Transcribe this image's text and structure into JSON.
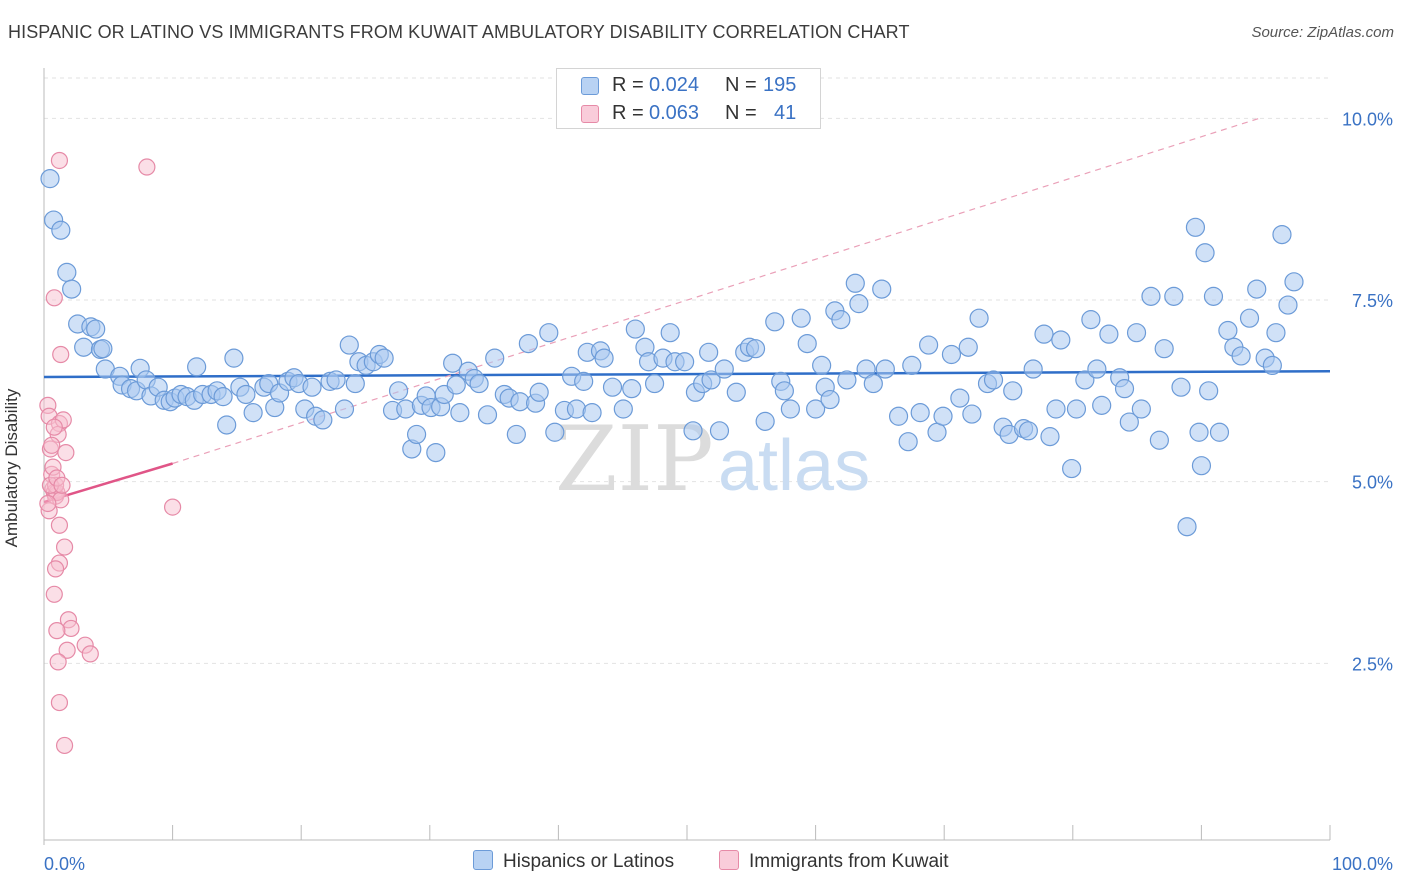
{
  "title": "HISPANIC OR LATINO VS IMMIGRANTS FROM KUWAIT AMBULATORY DISABILITY CORRELATION CHART",
  "source": "Source: ZipAtlas.com",
  "watermark": {
    "zip": "ZIP",
    "atlas": "atlas"
  },
  "legend": {
    "row1": {
      "r_label": "R =",
      "r_value": "0.024",
      "n_label": "N =",
      "n_value": "195"
    },
    "row2": {
      "r_label": "R =",
      "r_value": "0.063",
      "n_label": "N =",
      "n_value": "41"
    }
  },
  "colors": {
    "blue_fill": "#a9c8f0",
    "blue_stroke": "#6c9bd8",
    "blue_line": "#2f6ec8",
    "pink_fill": "#f7bfd0",
    "pink_stroke": "#e68aa7",
    "pink_line": "#e05587",
    "grid": "#e2e2e2",
    "tick_text": "#3a72c4"
  },
  "chart_data": {
    "type": "scatter",
    "title": "HISPANIC OR LATINO VS IMMIGRANTS FROM KUWAIT AMBULATORY DISABILITY CORRELATION CHART",
    "xlabel": "",
    "ylabel": "Ambulatory Disability",
    "xlim": [
      0,
      100
    ],
    "ylim": [
      0,
      10.5
    ],
    "x_tick_labels": [
      "0.0%",
      "100.0%"
    ],
    "y_ticks": [
      2.5,
      5.0,
      7.5,
      10.0
    ],
    "y_tick_labels": [
      "2.5%",
      "5.0%",
      "7.5%",
      "10.0%"
    ],
    "grid": true,
    "legend_position": "top-center",
    "series": [
      {
        "name": "Hispanics or Latinos",
        "trend": {
          "x": [
            0,
            100
          ],
          "y": [
            6.44,
            6.52
          ]
        },
        "points": [
          [
            0.5,
            9.17
          ],
          [
            0.8,
            8.6
          ],
          [
            1.4,
            8.46
          ],
          [
            1.9,
            7.88
          ],
          [
            2.3,
            7.65
          ],
          [
            2.8,
            7.17
          ],
          [
            3.3,
            6.85
          ],
          [
            3.9,
            7.13
          ],
          [
            4.3,
            7.1
          ],
          [
            4.7,
            6.82
          ],
          [
            4.9,
            6.83
          ],
          [
            5.1,
            6.55
          ],
          [
            6.3,
            6.45
          ],
          [
            6.5,
            6.33
          ],
          [
            7.2,
            6.28
          ],
          [
            7.7,
            6.25
          ],
          [
            8.0,
            6.56
          ],
          [
            8.5,
            6.4
          ],
          [
            8.9,
            6.18
          ],
          [
            9.5,
            6.3
          ],
          [
            10.0,
            6.12
          ],
          [
            10.5,
            6.1
          ],
          [
            10.9,
            6.15
          ],
          [
            11.4,
            6.2
          ],
          [
            11.9,
            6.17
          ],
          [
            12.5,
            6.12
          ],
          [
            12.7,
            6.58
          ],
          [
            13.2,
            6.2
          ],
          [
            13.9,
            6.2
          ],
          [
            14.4,
            6.25
          ],
          [
            14.9,
            6.17
          ],
          [
            15.2,
            5.78
          ],
          [
            15.8,
            6.7
          ],
          [
            16.3,
            6.3
          ],
          [
            16.8,
            6.2
          ],
          [
            17.4,
            5.95
          ],
          [
            18.3,
            6.3
          ],
          [
            18.7,
            6.35
          ],
          [
            19.2,
            6.02
          ],
          [
            19.6,
            6.22
          ],
          [
            20.3,
            6.38
          ],
          [
            20.8,
            6.43
          ],
          [
            21.2,
            6.35
          ],
          [
            21.7,
            6.0
          ],
          [
            22.3,
            6.3
          ],
          [
            22.6,
            5.9
          ],
          [
            23.2,
            5.85
          ],
          [
            23.8,
            6.38
          ],
          [
            24.3,
            6.4
          ],
          [
            25.0,
            6.0
          ],
          [
            25.4,
            6.88
          ],
          [
            25.9,
            6.35
          ],
          [
            26.2,
            6.65
          ],
          [
            26.8,
            6.6
          ],
          [
            27.4,
            6.65
          ],
          [
            27.9,
            6.75
          ],
          [
            28.3,
            6.7
          ],
          [
            29.0,
            5.98
          ],
          [
            29.5,
            6.25
          ],
          [
            30.1,
            6.0
          ],
          [
            30.6,
            5.45
          ],
          [
            31.0,
            5.65
          ],
          [
            31.4,
            6.05
          ],
          [
            31.8,
            6.18
          ],
          [
            32.2,
            6.02
          ],
          [
            32.6,
            5.4
          ],
          [
            33.0,
            6.03
          ],
          [
            33.3,
            6.2
          ],
          [
            34.0,
            6.63
          ],
          [
            34.3,
            6.33
          ],
          [
            34.6,
            5.95
          ],
          [
            35.3,
            6.52
          ],
          [
            35.8,
            6.42
          ],
          [
            36.2,
            6.35
          ],
          [
            36.9,
            5.92
          ],
          [
            37.5,
            6.7
          ],
          [
            38.3,
            6.2
          ],
          [
            38.7,
            6.15
          ],
          [
            39.3,
            5.65
          ],
          [
            39.6,
            6.1
          ],
          [
            40.3,
            6.9
          ],
          [
            40.9,
            6.08
          ],
          [
            41.2,
            6.23
          ],
          [
            42.0,
            7.05
          ],
          [
            42.5,
            5.68
          ],
          [
            43.3,
            5.98
          ],
          [
            43.9,
            6.45
          ],
          [
            44.3,
            6.0
          ],
          [
            44.9,
            6.38
          ],
          [
            45.2,
            6.78
          ],
          [
            45.6,
            5.95
          ],
          [
            46.3,
            6.8
          ],
          [
            46.6,
            6.7
          ],
          [
            47.3,
            6.3
          ],
          [
            48.2,
            6.0
          ],
          [
            48.9,
            6.28
          ],
          [
            49.2,
            7.1
          ],
          [
            50.0,
            6.85
          ],
          [
            50.3,
            6.65
          ],
          [
            50.8,
            6.35
          ],
          [
            51.5,
            6.7
          ],
          [
            52.1,
            7.05
          ],
          [
            52.5,
            6.65
          ],
          [
            53.3,
            6.65
          ],
          [
            54.0,
            5.7
          ],
          [
            54.2,
            6.23
          ],
          [
            54.8,
            6.35
          ],
          [
            55.3,
            6.78
          ],
          [
            55.5,
            6.4
          ],
          [
            56.2,
            5.7
          ],
          [
            56.6,
            6.55
          ],
          [
            57.6,
            6.23
          ],
          [
            58.3,
            6.78
          ],
          [
            58.7,
            6.85
          ],
          [
            59.2,
            6.83
          ],
          [
            60.0,
            5.83
          ],
          [
            60.8,
            7.2
          ],
          [
            61.3,
            6.38
          ],
          [
            61.6,
            6.25
          ],
          [
            62.1,
            6.0
          ],
          [
            63.0,
            7.25
          ],
          [
            63.5,
            6.9
          ],
          [
            64.2,
            6.0
          ],
          [
            64.7,
            6.6
          ],
          [
            65.0,
            6.3
          ],
          [
            65.4,
            6.13
          ],
          [
            65.8,
            7.35
          ],
          [
            66.3,
            7.23
          ],
          [
            66.8,
            6.4
          ],
          [
            67.5,
            7.73
          ],
          [
            67.8,
            7.45
          ],
          [
            68.4,
            6.55
          ],
          [
            69.0,
            6.35
          ],
          [
            69.7,
            7.65
          ],
          [
            70.0,
            6.55
          ],
          [
            71.1,
            5.9
          ],
          [
            71.9,
            5.55
          ],
          [
            72.2,
            6.6
          ],
          [
            72.9,
            5.95
          ],
          [
            73.6,
            6.88
          ],
          [
            74.3,
            5.68
          ],
          [
            74.8,
            5.9
          ],
          [
            75.5,
            6.75
          ],
          [
            76.2,
            6.15
          ],
          [
            76.9,
            6.85
          ],
          [
            77.2,
            5.93
          ],
          [
            77.8,
            7.25
          ],
          [
            78.5,
            6.35
          ],
          [
            79.0,
            6.4
          ],
          [
            79.8,
            5.75
          ],
          [
            80.3,
            5.65
          ],
          [
            80.6,
            6.25
          ],
          [
            81.5,
            5.73
          ],
          [
            81.9,
            5.7
          ],
          [
            82.3,
            6.55
          ],
          [
            83.2,
            7.03
          ],
          [
            83.7,
            5.62
          ],
          [
            84.2,
            6.0
          ],
          [
            84.6,
            6.95
          ],
          [
            85.5,
            5.18
          ],
          [
            85.9,
            6.0
          ],
          [
            86.6,
            6.4
          ],
          [
            87.1,
            7.23
          ],
          [
            87.6,
            6.55
          ],
          [
            88.0,
            6.05
          ],
          [
            88.6,
            7.03
          ],
          [
            89.5,
            6.43
          ],
          [
            89.9,
            6.28
          ],
          [
            90.3,
            5.82
          ],
          [
            90.9,
            7.05
          ],
          [
            91.3,
            6.0
          ],
          [
            92.1,
            7.55
          ],
          [
            92.8,
            5.57
          ],
          [
            93.2,
            6.83
          ],
          [
            94.0,
            7.55
          ],
          [
            94.6,
            6.3
          ],
          [
            95.1,
            4.38
          ],
          [
            95.8,
            8.5
          ],
          [
            96.1,
            5.68
          ],
          [
            96.3,
            5.22
          ],
          [
            96.6,
            8.15
          ],
          [
            96.9,
            6.25
          ],
          [
            97.3,
            7.55
          ],
          [
            97.8,
            5.68
          ],
          [
            98.5,
            7.08
          ],
          [
            99.0,
            6.85
          ],
          [
            99.6,
            6.73
          ],
          [
            100.3,
            7.25
          ],
          [
            100.9,
            7.65
          ],
          [
            101.6,
            6.7
          ],
          [
            102.2,
            6.6
          ],
          [
            102.5,
            7.05
          ],
          [
            103.0,
            8.4
          ],
          [
            103.5,
            7.43
          ],
          [
            104.0,
            7.75
          ]
        ]
      },
      {
        "name": "Immigrants from Kuwait",
        "trend": {
          "x": [
            0,
            10
          ],
          "y": [
            4.72,
            5.25
          ],
          "extended_x": [
            10,
            94.5
          ],
          "extended_y": [
            5.25,
            10.0
          ]
        },
        "points": [
          [
            0.3,
            6.05
          ],
          [
            0.4,
            5.9
          ],
          [
            0.5,
            5.45
          ],
          [
            0.6,
            5.1
          ],
          [
            0.7,
            4.9
          ],
          [
            0.8,
            4.85
          ],
          [
            0.9,
            4.8
          ],
          [
            1.0,
            4.85
          ],
          [
            0.4,
            4.6
          ],
          [
            0.7,
            5.2
          ],
          [
            1.2,
            5.8
          ],
          [
            1.1,
            5.65
          ],
          [
            1.5,
            5.85
          ],
          [
            1.7,
            5.4
          ],
          [
            0.9,
            4.95
          ],
          [
            1.3,
            4.75
          ],
          [
            1.2,
            4.4
          ],
          [
            1.6,
            4.1
          ],
          [
            1.2,
            3.88
          ],
          [
            0.9,
            3.8
          ],
          [
            0.8,
            3.45
          ],
          [
            1.9,
            3.1
          ],
          [
            2.1,
            2.98
          ],
          [
            1.0,
            2.95
          ],
          [
            1.8,
            2.68
          ],
          [
            3.2,
            2.75
          ],
          [
            3.6,
            2.63
          ],
          [
            1.1,
            2.52
          ],
          [
            1.2,
            1.96
          ],
          [
            1.6,
            1.37
          ],
          [
            0.8,
            7.53
          ],
          [
            1.3,
            6.75
          ],
          [
            1.2,
            9.42
          ],
          [
            8.0,
            9.33
          ],
          [
            10.0,
            4.65
          ],
          [
            0.5,
            4.95
          ],
          [
            0.6,
            5.5
          ],
          [
            1.0,
            5.05
          ],
          [
            0.3,
            4.7
          ],
          [
            1.4,
            4.95
          ],
          [
            0.8,
            5.75
          ]
        ]
      }
    ]
  },
  "bottom_legend": {
    "blue_label": "Hispanics or Latinos",
    "pink_label": "Immigrants from Kuwait"
  },
  "ylabel": "Ambulatory Disability",
  "x_axis": {
    "left_label": "0.0%",
    "right_label": "100.0%"
  }
}
